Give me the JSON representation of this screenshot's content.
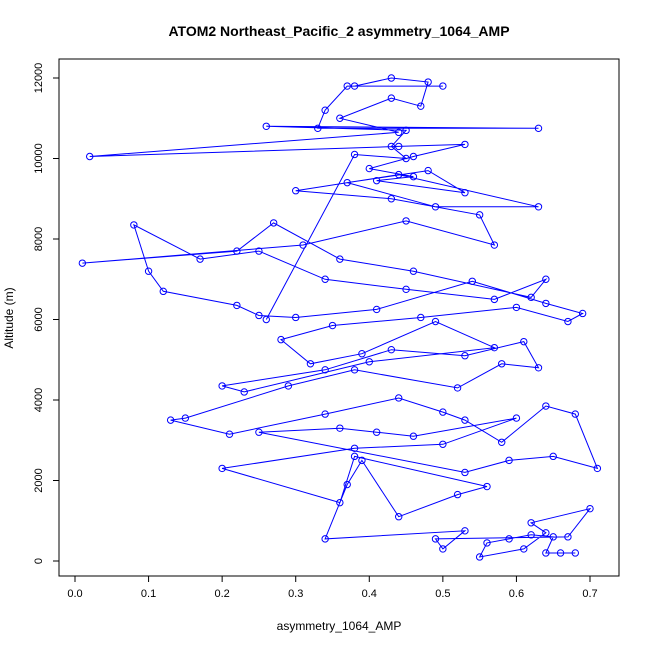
{
  "chart_data": {
    "type": "line",
    "title": "ATOM2 Northeast_Pacific_2 asymmetry_1064_AMP",
    "xlabel": "asymmetry_1064_AMP",
    "ylabel": "Altitude (m)",
    "xlim": [
      0.0,
      0.72
    ],
    "ylim": [
      0,
      12000
    ],
    "x_ticks": [
      "0.0",
      "0.1",
      "0.2",
      "0.3",
      "0.4",
      "0.5",
      "0.6",
      "0.7"
    ],
    "y_ticks": [
      "0",
      "2000",
      "4000",
      "6000",
      "8000",
      "10000",
      "12000"
    ],
    "grid": false,
    "series_color": "#0000FF",
    "markers": "open-circle",
    "series": [
      {
        "points": [
          [
            0.68,
            200
          ],
          [
            0.66,
            200
          ],
          [
            0.64,
            200
          ],
          [
            0.65,
            600
          ],
          [
            0.62,
            650
          ],
          [
            0.59,
            550
          ],
          [
            0.56,
            450
          ],
          [
            0.55,
            100
          ],
          [
            0.61,
            300
          ],
          [
            0.64,
            700
          ],
          [
            0.62,
            950
          ],
          [
            0.7,
            1300
          ],
          [
            0.67,
            600
          ],
          [
            0.49,
            550
          ],
          [
            0.5,
            300
          ],
          [
            0.53,
            750
          ],
          [
            0.34,
            550
          ],
          [
            0.37,
            1900
          ],
          [
            0.39,
            2500
          ],
          [
            0.44,
            1100
          ],
          [
            0.52,
            1650
          ],
          [
            0.56,
            1850
          ],
          [
            0.38,
            2600
          ],
          [
            0.36,
            1450
          ],
          [
            0.2,
            2300
          ],
          [
            0.38,
            2800
          ],
          [
            0.5,
            2900
          ],
          [
            0.6,
            3550
          ],
          [
            0.46,
            3100
          ],
          [
            0.41,
            3200
          ],
          [
            0.36,
            3300
          ],
          [
            0.25,
            3200
          ],
          [
            0.53,
            2200
          ],
          [
            0.59,
            2500
          ],
          [
            0.65,
            2600
          ],
          [
            0.71,
            2300
          ],
          [
            0.68,
            3650
          ],
          [
            0.64,
            3850
          ],
          [
            0.58,
            2950
          ],
          [
            0.53,
            3500
          ],
          [
            0.5,
            3700
          ],
          [
            0.44,
            4050
          ],
          [
            0.34,
            3650
          ],
          [
            0.21,
            3150
          ],
          [
            0.13,
            3500
          ],
          [
            0.15,
            3550
          ],
          [
            0.29,
            4350
          ],
          [
            0.38,
            4750
          ],
          [
            0.52,
            4300
          ],
          [
            0.58,
            4900
          ],
          [
            0.63,
            4800
          ],
          [
            0.61,
            5450
          ],
          [
            0.53,
            5100
          ],
          [
            0.43,
            5250
          ],
          [
            0.34,
            4750
          ],
          [
            0.2,
            4350
          ],
          [
            0.23,
            4200
          ],
          [
            0.4,
            4950
          ],
          [
            0.57,
            5300
          ],
          [
            0.49,
            5950
          ],
          [
            0.39,
            5150
          ],
          [
            0.32,
            4900
          ],
          [
            0.28,
            5500
          ],
          [
            0.35,
            5850
          ],
          [
            0.47,
            6050
          ],
          [
            0.6,
            6300
          ],
          [
            0.67,
            5950
          ],
          [
            0.69,
            6150
          ],
          [
            0.64,
            6400
          ],
          [
            0.54,
            6950
          ],
          [
            0.41,
            6250
          ],
          [
            0.3,
            6050
          ],
          [
            0.25,
            6100
          ],
          [
            0.22,
            6350
          ],
          [
            0.12,
            6700
          ],
          [
            0.1,
            7200
          ],
          [
            0.08,
            8350
          ],
          [
            0.17,
            7500
          ],
          [
            0.25,
            7700
          ],
          [
            0.34,
            7000
          ],
          [
            0.45,
            6750
          ],
          [
            0.57,
            6500
          ],
          [
            0.64,
            7000
          ],
          [
            0.62,
            6550
          ],
          [
            0.46,
            7200
          ],
          [
            0.36,
            7500
          ],
          [
            0.27,
            8400
          ],
          [
            0.22,
            7700
          ],
          [
            0.01,
            7400
          ],
          [
            0.31,
            7850
          ],
          [
            0.45,
            8450
          ],
          [
            0.57,
            7850
          ],
          [
            0.55,
            8600
          ],
          [
            0.43,
            9000
          ],
          [
            0.3,
            9200
          ],
          [
            0.44,
            9600
          ],
          [
            0.63,
            8800
          ],
          [
            0.49,
            8800
          ],
          [
            0.37,
            9400
          ],
          [
            0.48,
            9700
          ],
          [
            0.53,
            9150
          ],
          [
            0.41,
            9450
          ],
          [
            0.46,
            9550
          ],
          [
            0.4,
            9750
          ],
          [
            0.46,
            10050
          ],
          [
            0.53,
            10350
          ],
          [
            0.44,
            10300
          ],
          [
            0.02,
            10050
          ],
          [
            0.44,
            10650
          ],
          [
            0.36,
            11000
          ],
          [
            0.43,
            11500
          ],
          [
            0.47,
            11300
          ],
          [
            0.48,
            11900
          ],
          [
            0.43,
            12000
          ],
          [
            0.38,
            11800
          ],
          [
            0.5,
            11800
          ],
          [
            0.37,
            11800
          ],
          [
            0.34,
            11200
          ],
          [
            0.33,
            10750
          ],
          [
            0.63,
            10750
          ],
          [
            0.26,
            10800
          ],
          [
            0.45,
            10700
          ],
          [
            0.43,
            10300
          ],
          [
            0.45,
            10000
          ],
          [
            0.38,
            10100
          ],
          [
            0.26,
            6000
          ]
        ]
      }
    ]
  }
}
